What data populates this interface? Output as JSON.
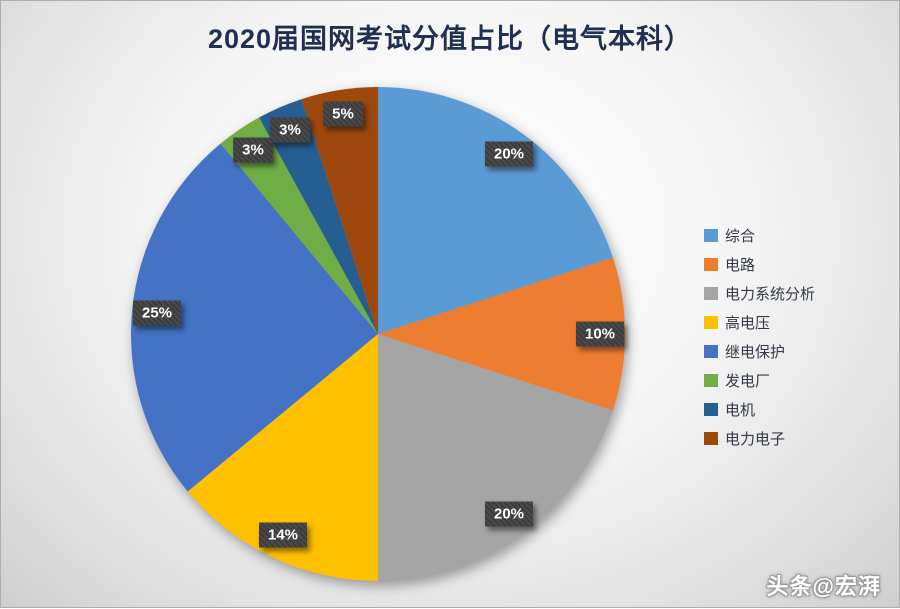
{
  "title": "2020届国网考试分值占比（电气本科）",
  "watermark": "头条@宏湃",
  "chart_data": {
    "type": "pie",
    "title": "2020届国网考试分值占比（电气本科）",
    "start_angle_deg": 0,
    "direction": "clockwise",
    "legend_position": "right",
    "data_labels": "percent",
    "slices": [
      {
        "label": "综合",
        "value": 20,
        "percent_label": "20%",
        "color": "#5B9BD5"
      },
      {
        "label": "电路",
        "value": 10,
        "percent_label": "10%",
        "color": "#ED7D31"
      },
      {
        "label": "电力系统分析",
        "value": 20,
        "percent_label": "20%",
        "color": "#A5A5A5"
      },
      {
        "label": "高电压",
        "value": 14,
        "percent_label": "14%",
        "color": "#FFC000"
      },
      {
        "label": "继电保护",
        "value": 25,
        "percent_label": "25%",
        "color": "#4472C4"
      },
      {
        "label": "发电厂",
        "value": 3,
        "percent_label": "3%",
        "color": "#70AD47"
      },
      {
        "label": "电机",
        "value": 3,
        "percent_label": "3%",
        "color": "#255E91"
      },
      {
        "label": "电力电子",
        "value": 5,
        "percent_label": "5%",
        "color": "#9E480E"
      }
    ]
  }
}
